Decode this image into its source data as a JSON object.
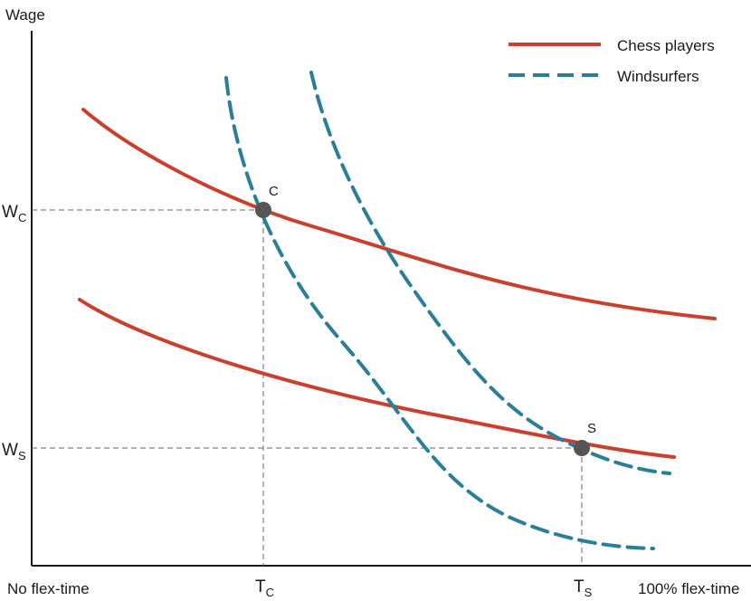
{
  "chart_data": {
    "type": "line",
    "title": "",
    "ylabel": "Wage",
    "x_axis_labels": {
      "left": "No flex-time",
      "right": "100% flex-time"
    },
    "y_ticks": [
      {
        "main": "W",
        "sub": "C"
      },
      {
        "main": "W",
        "sub": "S"
      }
    ],
    "x_ticks": [
      {
        "main": "T",
        "sub": "C"
      },
      {
        "main": "T",
        "sub": "S"
      }
    ],
    "points": [
      {
        "label": "C"
      },
      {
        "label": "S"
      }
    ],
    "series": [
      {
        "name": "Chess players",
        "style": "solid",
        "color": "#c9412e"
      },
      {
        "name": "Windsurfers",
        "style": "dashed",
        "color": "#2a7f98"
      }
    ],
    "grid": false,
    "legend_position": "top-right"
  },
  "colors": {
    "chess": "#c9412e",
    "windsurf": "#2a7f98",
    "axis": "#1a1a1a",
    "point": "#555555",
    "guide": "#666666"
  }
}
